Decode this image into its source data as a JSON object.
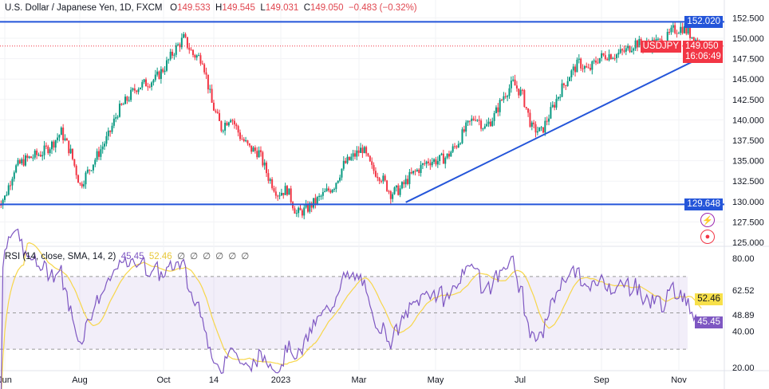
{
  "header": {
    "symbol_title": "U.S. Dollar / Japanese Yen, 1D, FXCM",
    "o_label": "O",
    "o": "149.533",
    "h_label": "H",
    "h": "149.545",
    "l_label": "L",
    "l": "149.031",
    "c_label": "C",
    "c": "149.050",
    "change": "−0.483 (−0.32%)"
  },
  "rsi_legend": {
    "title": "RSI (14, close, SMA, 14, 2)",
    "rsi": "45.45",
    "sma": "52.46",
    "empty": [
      "∅",
      "∅",
      "∅",
      "∅",
      "∅",
      "∅"
    ]
  },
  "price_badges": {
    "upper_line": "152.020",
    "lower_line": "129.648",
    "symbol": "USDJPY",
    "last": "149.050",
    "countdown": "16:06:49"
  },
  "rsi_badges": {
    "sma": "52.46",
    "rsi": "45.45"
  },
  "colors": {
    "up": "#089981",
    "down": "#f23645",
    "line": "#2455d9",
    "rsi": "#7e57c2",
    "sma": "#f7d64a"
  },
  "chart_data": {
    "type": "candlestick",
    "title": "U.S. Dollar / Japanese Yen, 1D, FXCM",
    "ylim": [
      124.5,
      153.5
    ],
    "y_ticks": [
      "125.000",
      "127.500",
      "130.000",
      "132.500",
      "135.000",
      "137.500",
      "140.000",
      "142.500",
      "145.000",
      "147.500",
      "150.000",
      "152.500"
    ],
    "x_ticks": [
      "Jun",
      "Aug",
      "Oct",
      "14",
      "2023",
      "Mar",
      "May",
      "Jul",
      "Sep",
      "Nov"
    ],
    "weekly_closes_approx": [
      130.5,
      134,
      135,
      135.5,
      136,
      137,
      138.5,
      136,
      132,
      134,
      136,
      138,
      141,
      142.5,
      144,
      144.5,
      145,
      146.5,
      148.5,
      150,
      148,
      147.5,
      142,
      139,
      140.5,
      138,
      136.5,
      136,
      133,
      131,
      131.5,
      128.5,
      129,
      130,
      131,
      132,
      134.5,
      135.5,
      136.5,
      134,
      133,
      131,
      131.5,
      133,
      134,
      135,
      135,
      135.5,
      137,
      139,
      140.5,
      139,
      140.5,
      143,
      144.5,
      143,
      139,
      138.5,
      141,
      143.5,
      145.5,
      147,
      146,
      147.5,
      148,
      148,
      148.5,
      149.5,
      149,
      149.5,
      149.5,
      151,
      151.3,
      150.3,
      149.05
    ],
    "horizontal_lines": [
      152.02,
      129.648
    ],
    "trend_line": {
      "start": {
        "week": 42.6,
        "price": 129.9
      },
      "end": {
        "week": 75.3,
        "price": 148.4
      }
    },
    "rsi": {
      "ylim": [
        15,
        85
      ],
      "y_ticks": [
        "80.00",
        "62.52",
        "48.89",
        "40.00",
        "20.00"
      ],
      "bands": [
        70,
        50,
        30
      ],
      "last_rsi": 45.45,
      "last_sma": 52.46
    }
  }
}
